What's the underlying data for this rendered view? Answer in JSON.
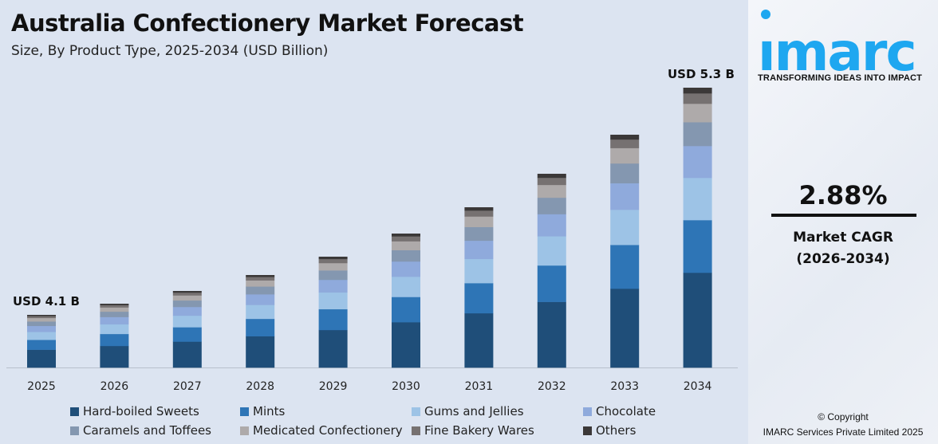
{
  "header": {
    "title": "Australia Confectionery Market Forecast",
    "subtitle": "Size, By Product Type, 2025-2034 (USD Billion)"
  },
  "chart_data": {
    "type": "bar",
    "stacked": true,
    "title": "Australia Confectionery Market Forecast",
    "subtitle": "Size, By Product Type, 2025-2034 (USD Billion)",
    "categories": [
      "2025",
      "2026",
      "2027",
      "2028",
      "2029",
      "2030",
      "2031",
      "2032",
      "2033",
      "2034"
    ],
    "totals": [
      4.1,
      4.22,
      4.34,
      4.46,
      4.59,
      4.73,
      4.86,
      5.0,
      5.15,
      5.3
    ],
    "annotations": {
      "first": "USD 4.1 B",
      "last": "USD 5.3 B"
    },
    "series": [
      {
        "name": "Hard-boiled Sweets",
        "color": "#1f4e79",
        "share": 0.339
      },
      {
        "name": "Mints",
        "color": "#2e75b6",
        "share": 0.188
      },
      {
        "name": "Gums and Jellies",
        "color": "#9dc3e6",
        "share": 0.151
      },
      {
        "name": "Chocolate",
        "color": "#8faadc",
        "share": 0.114
      },
      {
        "name": "Caramels and Toffees",
        "color": "#8497b0",
        "share": 0.085
      },
      {
        "name": "Medicated Confectionery",
        "color": "#aeaaaa",
        "share": 0.066
      },
      {
        "name": "Fine Bakery Wares",
        "color": "#767171",
        "share": 0.037
      },
      {
        "name": "Others",
        "color": "#3b3838",
        "share": 0.02
      }
    ],
    "legend": "bottom",
    "grid": false
  },
  "sidebar": {
    "logo": "imarc",
    "tagline": "TRANSFORMING IDEAS INTO IMPACT",
    "cagr": "2.88%",
    "cagr_label": "Market CAGR",
    "cagr_period": "(2026-2034)",
    "copyright": "© Copyright",
    "company": "IMARC Services Private Limited 2025",
    "brand_color": "#1ea7f0"
  }
}
